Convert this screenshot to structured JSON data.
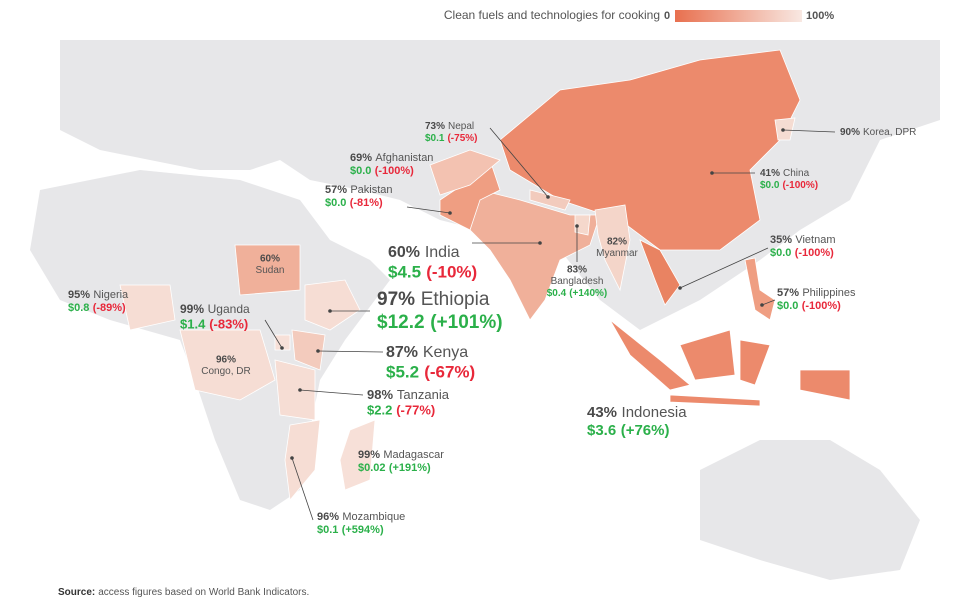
{
  "legend": {
    "title": "Clean fuels and technologies for cooking",
    "min": "0",
    "max": "100%"
  },
  "countries": [
    {
      "share": "73%",
      "name": "Nepal",
      "funding": "$0.1",
      "change": "(-75%)"
    },
    {
      "share": "69%",
      "name": "Afghanistan",
      "funding": "$0.0",
      "change": "(-100%)"
    },
    {
      "share": "57%",
      "name": "Pakistan",
      "funding": "$0.0",
      "change": "(-81%)"
    },
    {
      "share": "60%",
      "name": "India",
      "funding": "$4.5",
      "change": "(-10%)"
    },
    {
      "share": "83%",
      "name": "Bangladesh",
      "funding": "$0.4",
      "change": "(+140%)"
    },
    {
      "share": "82%",
      "name": "Myanmar"
    },
    {
      "share": "41%",
      "name": "China",
      "funding": "$0.0",
      "change": "(-100%)"
    },
    {
      "share": "90%",
      "name": "Korea, DPR"
    },
    {
      "share": "35%",
      "name": "Vietnam",
      "funding": "$0.0",
      "change": "(-100%)"
    },
    {
      "share": "57%",
      "name": "Philippines",
      "funding": "$0.0",
      "change": "(-100%)"
    },
    {
      "share": "43%",
      "name": "Indonesia",
      "funding": "$3.6",
      "change": "(+76%)"
    },
    {
      "share": "60%",
      "name": "Sudan"
    },
    {
      "share": "95%",
      "name": "Nigeria",
      "funding": "$0.8",
      "change": "(-89%)"
    },
    {
      "share": "99%",
      "name": "Uganda",
      "funding": "$1.4",
      "change": "(-83%)"
    },
    {
      "share": "96%",
      "name": "Congo, DR"
    },
    {
      "share": "97%",
      "name": "Ethiopia",
      "funding": "$12.2",
      "change": "(+101%)"
    },
    {
      "share": "87%",
      "name": "Kenya",
      "funding": "$5.2",
      "change": "(-67%)"
    },
    {
      "share": "98%",
      "name": "Tanzania",
      "funding": "$2.2",
      "change": "(-77%)"
    },
    {
      "share": "99%",
      "name": "Madagascar",
      "funding": "$0.02",
      "change": "(+191%)"
    },
    {
      "share": "96%",
      "name": "Mozambique",
      "funding": "$0.1",
      "change": "(+594%)"
    }
  ],
  "source": {
    "label": "Source:",
    "text": "access figures based on World Bank Indicators."
  }
}
